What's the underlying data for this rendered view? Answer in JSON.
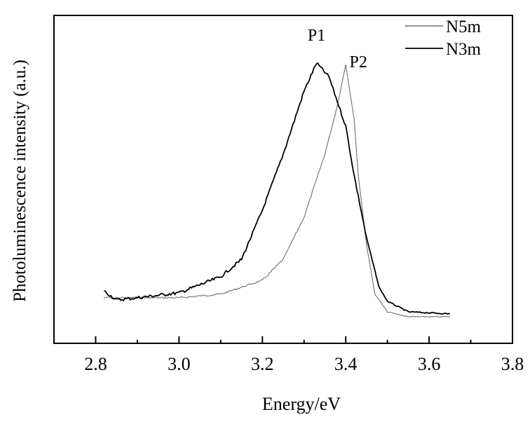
{
  "chart_data": {
    "type": "line",
    "title": "",
    "xlabel": "Energy/eV",
    "ylabel": "Photoluminescence intensity (a.u.)",
    "xlim": [
      2.7,
      3.8
    ],
    "ylim": [
      0,
      100
    ],
    "xticks": [
      "2.8",
      "3.0",
      "3.2",
      "3.4",
      "3.6",
      "3.8"
    ],
    "xtick_values": [
      2.8,
      3.0,
      3.2,
      3.4,
      3.6,
      3.8
    ],
    "grid": false,
    "legend_position": "top-right",
    "series": [
      {
        "name": "N5m",
        "style": "dotted",
        "x": [
          2.82,
          2.9,
          3.0,
          3.1,
          3.2,
          3.25,
          3.3,
          3.35,
          3.38,
          3.4,
          3.42,
          3.43,
          3.45,
          3.47,
          3.5,
          3.55,
          3.65
        ],
        "y": [
          13.9,
          13.9,
          13.9,
          15.0,
          19.2,
          25.6,
          38.5,
          57.7,
          72.6,
          85.0,
          68.4,
          51.3,
          29.9,
          15.0,
          9.6,
          8.1,
          8.1
        ]
      },
      {
        "name": "N3m",
        "style": "solid",
        "x": [
          2.82,
          2.85,
          2.9,
          3.0,
          3.1,
          3.15,
          3.2,
          3.25,
          3.3,
          3.33,
          3.36,
          3.4,
          3.42,
          3.45,
          3.48,
          3.5,
          3.55,
          3.65
        ],
        "y": [
          16.0,
          13.2,
          13.9,
          15.4,
          20.3,
          25.6,
          40.6,
          57.7,
          76.9,
          85.5,
          81.2,
          66.2,
          51.3,
          32.1,
          17.1,
          12.8,
          9.6,
          9.0
        ]
      }
    ],
    "annotations": [
      {
        "text": "P1",
        "x": 3.33,
        "y": 85.5
      },
      {
        "text": "P2",
        "x": 3.4,
        "y": 85.0
      }
    ]
  }
}
